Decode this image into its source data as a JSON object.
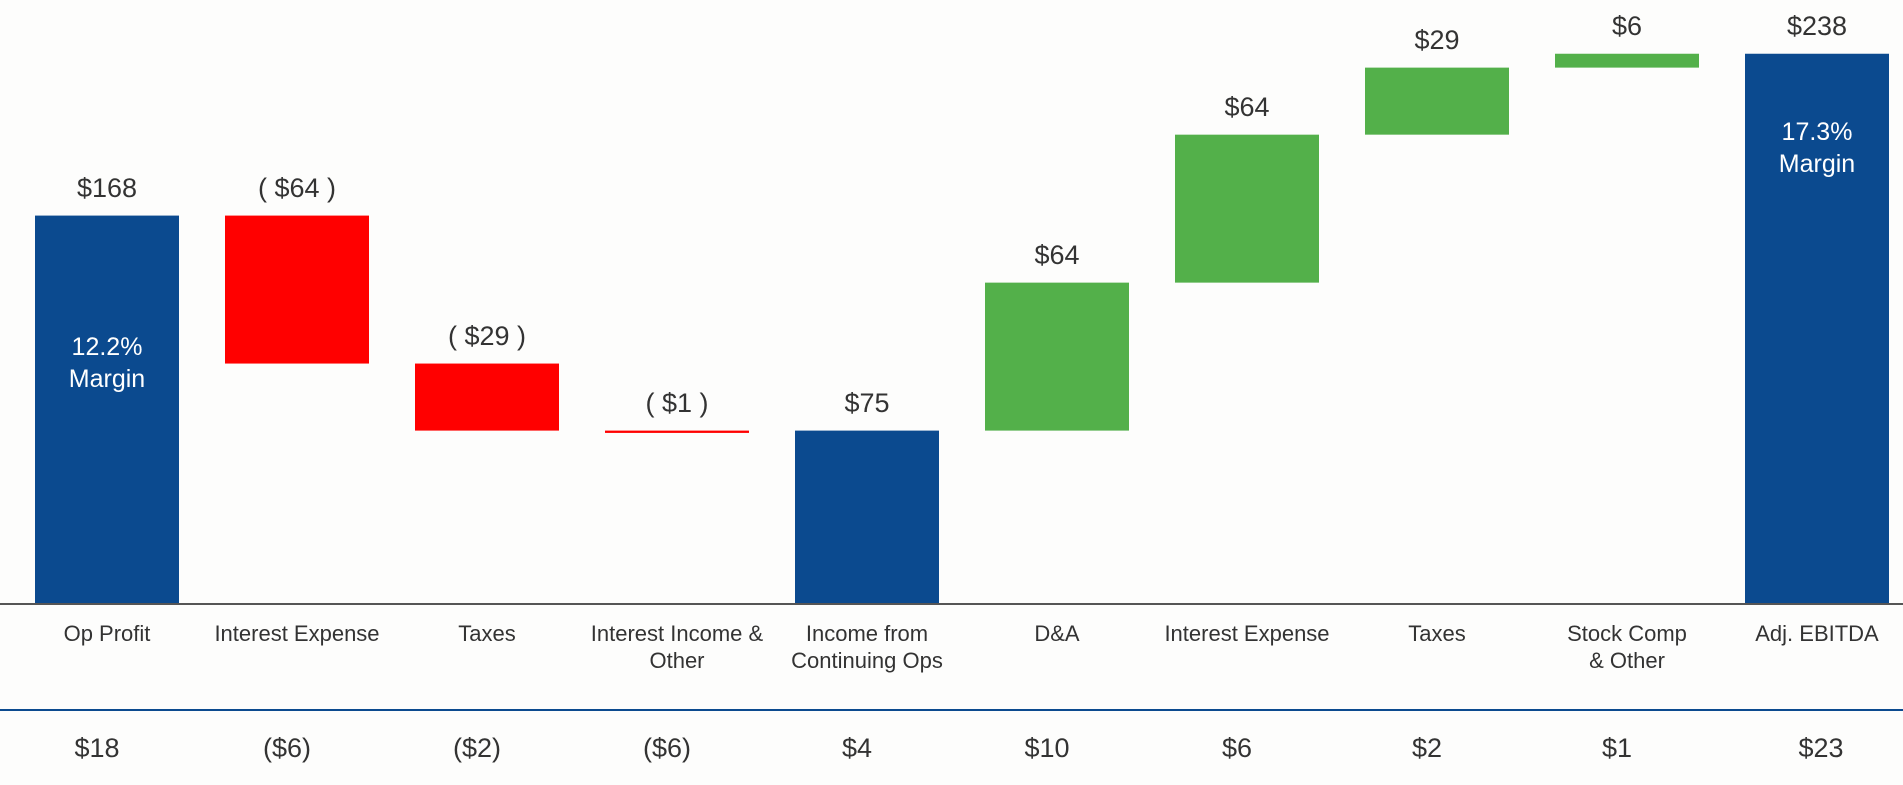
{
  "chart_data": {
    "type": "waterfall",
    "categories": [
      "Op Profit",
      "Interest Expense",
      "Taxes",
      "Interest Income &\nOther",
      "Income from\nContinuing Ops",
      "D&A",
      "Interest Expense",
      "Taxes",
      "Stock Comp\n& Other",
      "Adj. EBITDA"
    ],
    "values": [
      168,
      -64,
      -29,
      -1,
      75,
      64,
      64,
      29,
      6,
      238
    ],
    "value_labels": [
      "$168",
      "( $64 )",
      "( $29 )",
      "( $1 )",
      "$75",
      "$64",
      "$64",
      "$29",
      "$6",
      "$238"
    ],
    "measure": [
      "absolute",
      "relative",
      "relative",
      "relative",
      "absolute",
      "relative",
      "relative",
      "relative",
      "relative",
      "absolute"
    ],
    "colors": {
      "total": "#0b4a8f",
      "increase": "#53b04a",
      "decrease": "#ff0000"
    },
    "annotations": [
      "12.2%\nMargin",
      "17.3%\nMargin"
    ],
    "ylim": [
      0,
      250
    ],
    "bottom_row": [
      "$18",
      "($6)",
      "($2)",
      "($6)",
      "$4",
      "$10",
      "$6",
      "$2",
      "$1",
      "$23"
    ]
  }
}
